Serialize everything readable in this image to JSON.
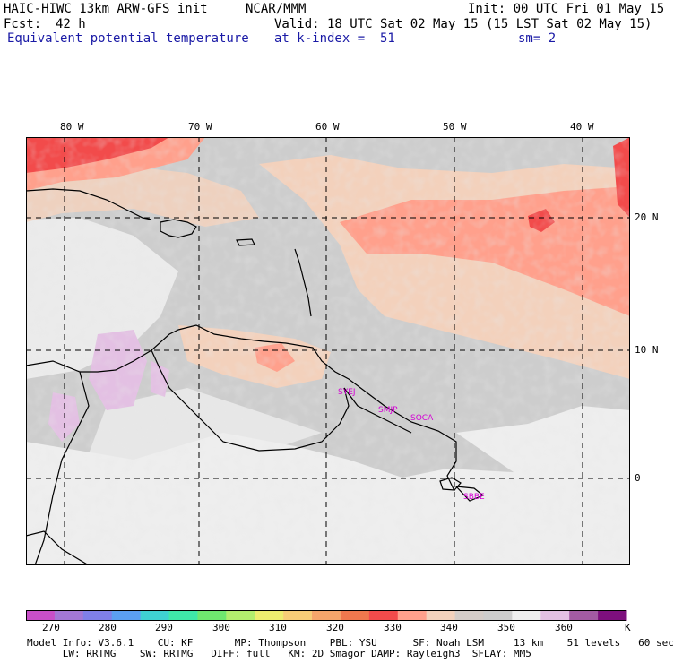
{
  "header": {
    "model_title": "HAIC-HIWC 13km ARW-GFS init",
    "center": "NCAR/MMM",
    "init": "Init: 00 UTC Fri 01 May 15",
    "fcst_label": "Fcst:",
    "fcst_value": "42 h",
    "valid": "Valid: 18 UTC Sat 02 May 15 (15 LST Sat 02 May 15)",
    "field_name": "Equivalent potential temperature",
    "level": "at k-index =  51",
    "smoothing": "sm= 2"
  },
  "map": {
    "lon_labels": [
      "80 W",
      "70 W",
      "60 W",
      "50 W",
      "40 W"
    ],
    "lat_labels": [
      "20 N",
      "10 N",
      "0"
    ],
    "stations": [
      "SYEJ",
      "SMJP",
      "SOCA",
      "SBBE"
    ],
    "colors": {
      "grid": "#000000",
      "coast": "#000000",
      "station": "#d400d4"
    }
  },
  "colorbar": {
    "unit": "K",
    "tick_labels": [
      "270",
      "280",
      "290",
      "300",
      "310",
      "320",
      "330",
      "340",
      "350",
      "360"
    ],
    "colors": [
      "#c84fc8",
      "#a378d6",
      "#7f7fe8",
      "#5b9ff2",
      "#3fd1d1",
      "#3fe8a8",
      "#6fe86f",
      "#b2ee6e",
      "#eded6f",
      "#f7cd77",
      "#f6a56b",
      "#f0784e",
      "#f24b4b",
      "#ffa08c",
      "#f3d1bc",
      "#d4ccc8",
      "#cdcdcd",
      "#eeeeee",
      "#e3c0e3",
      "#a35ba3",
      "#7d0f7d"
    ]
  },
  "footer": {
    "line1": "Model Info: V3.6.1    CU: KF       MP: Thompson    PBL: YSU      SF: Noah LSM     13 km    51 levels   60 sec",
    "line2": "      LW: RRTMG    SW: RRTMG   DIFF: full   KM: 2D Smagor DAMP: Rayleigh3  SFLAY: MM5"
  }
}
